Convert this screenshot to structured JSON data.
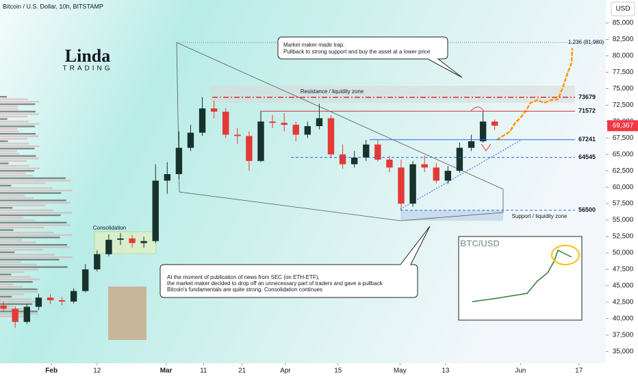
{
  "chart_data": {
    "type": "candlestick",
    "title": "Bitcoin / U.S. Dollar, 10h, BITSTAMP",
    "currency": "USD",
    "opens": [
      42000,
      41500,
      39500,
      41800,
      43200,
      42800,
      42600,
      44200,
      47500,
      49800,
      52000,
      52200,
      51500,
      51800,
      61000,
      62000,
      66000,
      68300,
      72000,
      71500,
      68000,
      67800,
      64000,
      70000,
      69800,
      69500,
      68000,
      69300,
      70500,
      65000,
      63500,
      64500,
      66500,
      64200,
      63000,
      57500,
      63500,
      63000,
      61000,
      62500,
      66000,
      67000,
      70000
    ],
    "highs": [
      42600,
      41900,
      42200,
      43800,
      43700,
      43300,
      44600,
      48300,
      50400,
      52800,
      53000,
      52700,
      52500,
      63500,
      63800,
      68500,
      69500,
      73700,
      73200,
      72000,
      69000,
      68500,
      71500,
      71000,
      71300,
      70000,
      70000,
      72700,
      71000,
      66500,
      65500,
      67200,
      67300,
      64800,
      64200,
      64000,
      64800,
      63700,
      63200,
      66800,
      68000,
      71500,
      70300
    ],
    "lows": [
      41000,
      38600,
      39200,
      41300,
      42200,
      42000,
      42300,
      44000,
      47200,
      49500,
      51200,
      50800,
      50800,
      51500,
      59000,
      61200,
      65500,
      67800,
      70500,
      67500,
      66600,
      62500,
      63800,
      69000,
      68500,
      67000,
      67500,
      68800,
      64500,
      62800,
      63000,
      64000,
      63900,
      62300,
      56500,
      57000,
      62300,
      60600,
      60500,
      62200,
      65500,
      66800,
      68700
    ],
    "closes": [
      41500,
      39500,
      41800,
      43200,
      42800,
      42600,
      44200,
      47500,
      49800,
      52000,
      52200,
      51500,
      51800,
      61000,
      62000,
      66000,
      68300,
      72000,
      71500,
      68000,
      67800,
      64000,
      70000,
      69800,
      69500,
      68000,
      69300,
      70500,
      65000,
      63500,
      64500,
      66500,
      64200,
      63000,
      57500,
      63500,
      63000,
      61000,
      62500,
      66000,
      67000,
      70000,
      69367
    ],
    "up_color": "#17332c",
    "down_color": "#e53935",
    "ylim": [
      33200,
      88500
    ],
    "yticks": [
      {
        "value": 35000,
        "label": "35,000"
      },
      {
        "value": 37500,
        "label": "37,500"
      },
      {
        "value": 40000,
        "label": "40,000"
      },
      {
        "value": 42500,
        "label": "42,500"
      },
      {
        "value": 45000,
        "label": "45,000"
      },
      {
        "value": 47500,
        "label": "47,500"
      },
      {
        "value": 50000,
        "label": "50,000"
      },
      {
        "value": 52500,
        "label": "52,500"
      },
      {
        "value": 55000,
        "label": "55,000"
      },
      {
        "value": 57500,
        "label": "57,500"
      },
      {
        "value": 60000,
        "label": "60,000"
      },
      {
        "value": 62500,
        "label": "62,500"
      },
      {
        "value": 65000,
        "label": "65,000"
      },
      {
        "value": 67500,
        "label": "67,500"
      },
      {
        "value": 70000,
        "label": "70,000"
      },
      {
        "value": 72500,
        "label": "72,500"
      },
      {
        "value": 75000,
        "label": "75,000"
      },
      {
        "value": 77500,
        "label": "77,500"
      },
      {
        "value": 80000,
        "label": "80,000"
      },
      {
        "value": 82500,
        "label": "82,500"
      },
      {
        "value": 85000,
        "label": "85,000"
      }
    ],
    "xlim": [
      -0.3,
      51.5
    ],
    "xticks": [
      {
        "value": 4.1,
        "label": "Feb"
      },
      {
        "value": 8.0,
        "label": "12"
      },
      {
        "value": 13.9,
        "label": "Mar"
      },
      {
        "value": 17.1,
        "label": "11"
      },
      {
        "value": 20.4,
        "label": "21"
      },
      {
        "value": 24.1,
        "label": "Apr"
      },
      {
        "value": 28.6,
        "label": "15"
      },
      {
        "value": 33.9,
        "label": "May"
      },
      {
        "value": 37.8,
        "label": "13"
      },
      {
        "value": 44.2,
        "label": "Jun"
      },
      {
        "value": 49.2,
        "label": "17"
      }
    ],
    "levels": [
      73679,
      71572,
      67241,
      64545,
      56500
    ],
    "last_price": {
      "value": 69367,
      "label": "69,367"
    },
    "annotations": {
      "fib": "1.236 (81,980)",
      "resistance": "Resistance / liquidity zone",
      "support": "Support / liquidity zone",
      "consolidation": "Consolidation",
      "trap": [
        "Market maker made trap.",
        "Pullback to strong support and buy the asset at a lower price"
      ],
      "news": [
        "At the moment of publication of news from SEC (on ETH-ETF),",
        "the market maker decided to drop off an unnecessary part of traders and gave a pullback",
        "Bitcoin's fundamentals are quite strong. Consolidation continues"
      ]
    }
  },
  "logo": {
    "name": "Linda",
    "sub": "TRADING"
  },
  "inset": {
    "title": "BTC/USD"
  }
}
